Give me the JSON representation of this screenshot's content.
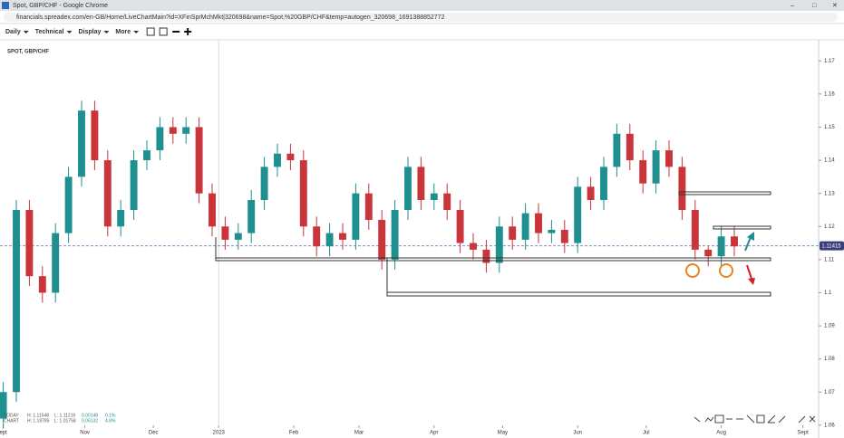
{
  "window_title": "Spot, GBP/CHF - Google Chrome",
  "url": "financials.spreadex.com/en-GB/Home/LiveChartMain?id=XFinSprMchMkt|320698&name=Spot,%20GBP/CHF&temp=autogen_320698_1691388852772",
  "toolbar": [
    "Daily",
    "Technical",
    "Display",
    "More"
  ],
  "stats": {
    "today": [
      "TODAY",
      "H: 1.11548",
      "L: 1.11216",
      "0.00148",
      "0.1%"
    ],
    "chart": [
      "CHART",
      "H: 1.18785",
      "L: 1.01758",
      "0.06132",
      "4.8%"
    ]
  },
  "chart_data": {
    "type": "candlestick",
    "title": "SPOT, GBP/CHF",
    "x": [
      1,
      5,
      9,
      13,
      17,
      21,
      25,
      29,
      33,
      37,
      41,
      45,
      49,
      53,
      57,
      61,
      65,
      69,
      73,
      77,
      81,
      85,
      89,
      93,
      97,
      101,
      105,
      109,
      113,
      117,
      121,
      125,
      129,
      133,
      137,
      141,
      145,
      149,
      153,
      157,
      161,
      165,
      169,
      173,
      177,
      181,
      185,
      189,
      193,
      197,
      201,
      205,
      209,
      213,
      217,
      221,
      225
    ],
    "open": [
      1.062,
      1.07,
      1.125,
      1.105,
      1.1,
      1.118,
      1.135,
      1.155,
      1.14,
      1.12,
      1.125,
      1.14,
      1.143,
      1.15,
      1.148,
      1.15,
      1.13,
      1.12,
      1.116,
      1.118,
      1.128,
      1.138,
      1.142,
      1.14,
      1.12,
      1.114,
      1.118,
      1.116,
      1.13,
      1.122,
      1.11,
      1.125,
      1.138,
      1.128,
      1.13,
      1.125,
      1.115,
      1.113,
      1.109,
      1.12,
      1.116,
      1.124,
      1.118,
      1.119,
      1.115,
      1.132,
      1.128,
      1.138,
      1.148,
      1.14,
      1.133,
      1.143,
      1.138,
      1.125,
      1.113,
      1.111,
      1.117
    ],
    "high": [
      1.073,
      1.128,
      1.128,
      1.108,
      1.121,
      1.138,
      1.158,
      1.158,
      1.143,
      1.128,
      1.143,
      1.146,
      1.153,
      1.153,
      1.153,
      1.153,
      1.133,
      1.123,
      1.121,
      1.131,
      1.141,
      1.145,
      1.145,
      1.143,
      1.123,
      1.121,
      1.121,
      1.133,
      1.133,
      1.125,
      1.128,
      1.141,
      1.141,
      1.133,
      1.133,
      1.128,
      1.118,
      1.116,
      1.123,
      1.123,
      1.127,
      1.127,
      1.122,
      1.122,
      1.135,
      1.135,
      1.141,
      1.151,
      1.151,
      1.143,
      1.146,
      1.146,
      1.141,
      1.128,
      1.114,
      1.12,
      1.12
    ],
    "low": [
      1.059,
      1.067,
      1.102,
      1.097,
      1.097,
      1.115,
      1.132,
      1.137,
      1.117,
      1.117,
      1.122,
      1.137,
      1.14,
      1.145,
      1.145,
      1.127,
      1.117,
      1.113,
      1.113,
      1.115,
      1.125,
      1.135,
      1.137,
      1.117,
      1.111,
      1.111,
      1.113,
      1.113,
      1.119,
      1.107,
      1.107,
      1.122,
      1.125,
      1.125,
      1.122,
      1.112,
      1.11,
      1.106,
      1.106,
      1.113,
      1.113,
      1.115,
      1.115,
      1.112,
      1.112,
      1.125,
      1.125,
      1.135,
      1.137,
      1.13,
      1.13,
      1.135,
      1.122,
      1.11,
      1.108,
      1.108,
      1.111
    ],
    "close": [
      1.07,
      1.125,
      1.105,
      1.1,
      1.118,
      1.135,
      1.155,
      1.14,
      1.12,
      1.125,
      1.14,
      1.143,
      1.15,
      1.148,
      1.15,
      1.13,
      1.12,
      1.116,
      1.118,
      1.128,
      1.138,
      1.142,
      1.14,
      1.12,
      1.114,
      1.118,
      1.116,
      1.13,
      1.122,
      1.11,
      1.125,
      1.138,
      1.128,
      1.13,
      1.125,
      1.115,
      1.113,
      1.109,
      1.12,
      1.116,
      1.124,
      1.118,
      1.119,
      1.115,
      1.132,
      1.128,
      1.138,
      1.148,
      1.14,
      1.133,
      1.143,
      1.138,
      1.125,
      1.113,
      1.111,
      1.117,
      1.114
    ],
    "up_color": "#1f8f8f",
    "down_color": "#c9353b",
    "last_price": 1.11415,
    "xlim": [
      0,
      250
    ],
    "xticks": [
      {
        "value": 1,
        "label": "ept"
      },
      {
        "value": 26,
        "label": "Nov"
      },
      {
        "value": 47,
        "label": "Dec"
      },
      {
        "value": 67,
        "label": "2023"
      },
      {
        "value": 90,
        "label": "Feb"
      },
      {
        "value": 110,
        "label": "Mar"
      },
      {
        "value": 133,
        "label": "Apr"
      },
      {
        "value": 154,
        "label": "May"
      },
      {
        "value": 177,
        "label": "Jun"
      },
      {
        "value": 198,
        "label": "Jul"
      },
      {
        "value": 221,
        "label": "Aug"
      },
      {
        "value": 246,
        "label": "Sept"
      }
    ],
    "ylim": [
      1.0575,
      1.175
    ],
    "yticks": [
      1.17,
      1.16,
      1.15,
      1.14,
      1.13,
      1.12,
      1.11,
      1.1,
      1.09,
      1.08,
      1.07,
      1.06
    ]
  }
}
